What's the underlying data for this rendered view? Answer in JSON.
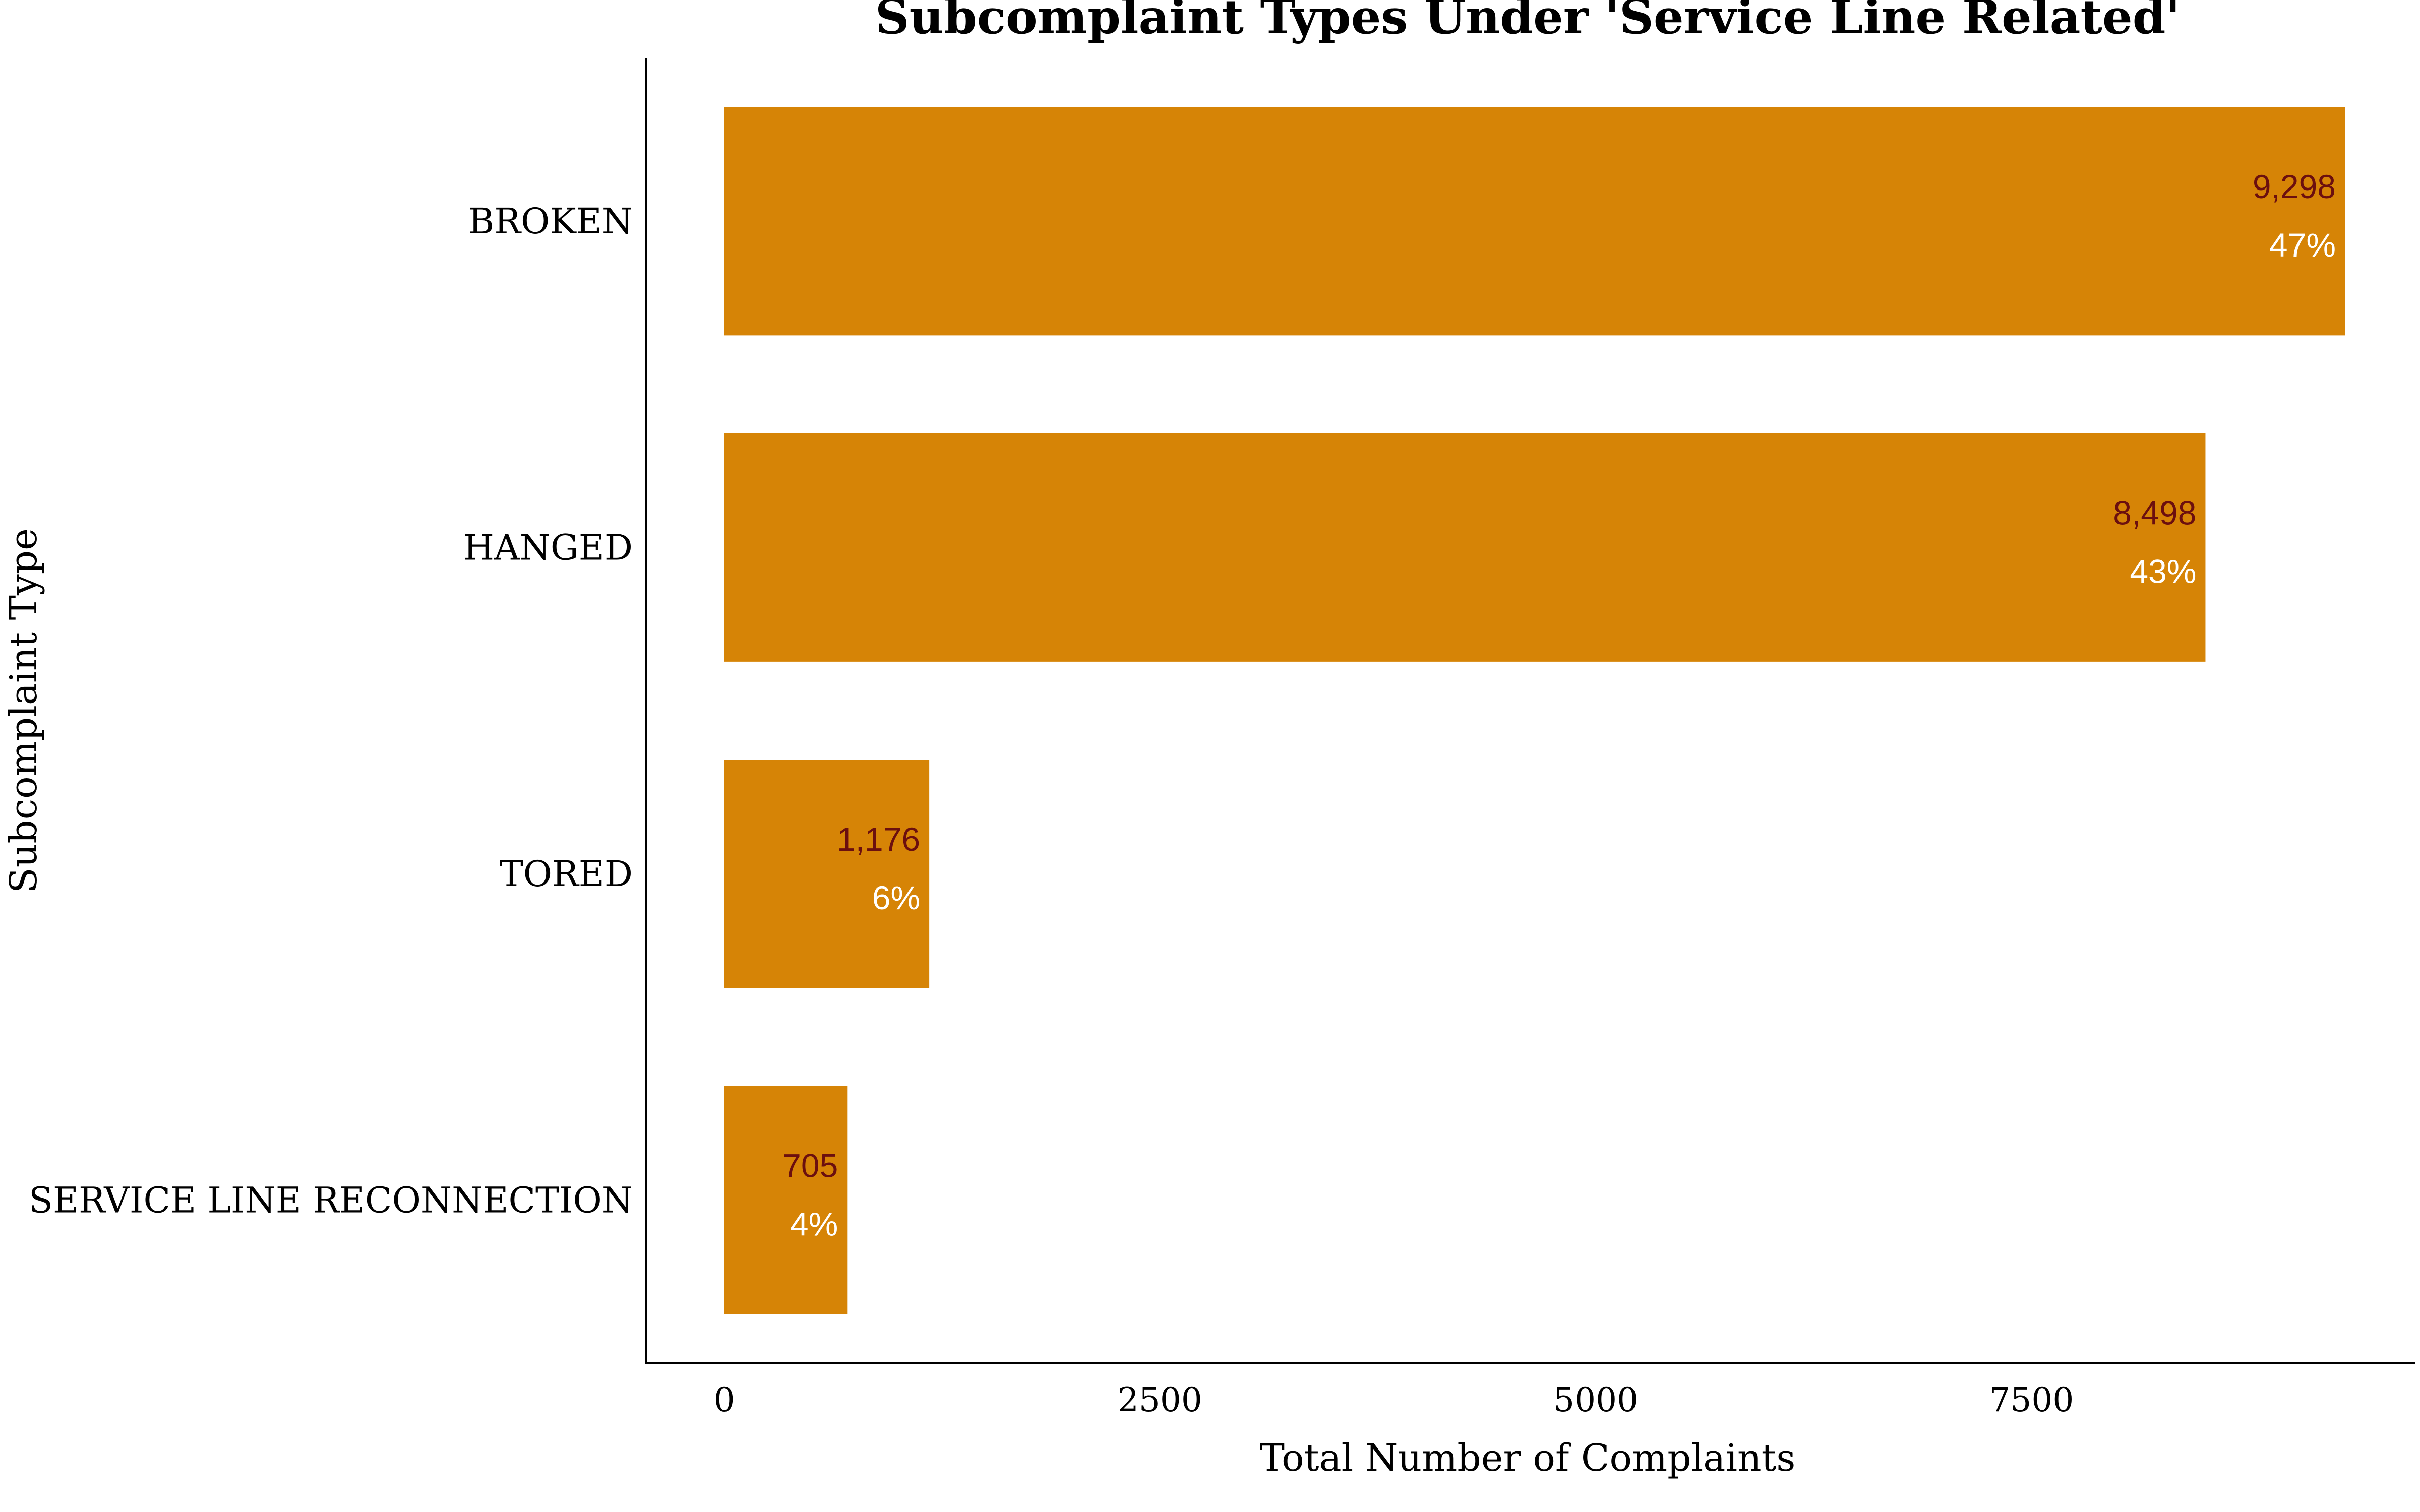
{
  "chart_data": {
    "type": "bar",
    "orientation": "horizontal",
    "title": "Subcomplaint Types Under 'Service Line Related'",
    "xlabel": "Total Number of Complaints",
    "ylabel": "Subcomplaint Type",
    "categories": [
      "BROKEN",
      "HANGED",
      "TORED",
      "SERVICE LINE RECONNECTION"
    ],
    "values": [
      9298,
      8498,
      1176,
      705
    ],
    "value_labels": [
      "9,298",
      "8,498",
      "1,176",
      "705"
    ],
    "percent_labels": [
      "47%",
      "43%",
      "6%",
      "4%"
    ],
    "xticks": [
      0,
      2500,
      5000,
      7500
    ],
    "xtick_labels": [
      "0",
      "2500",
      "5000",
      "7500"
    ],
    "xlim": [
      -450,
      9700
    ],
    "grid": false,
    "legend": "none",
    "colors": {
      "bar": "#D68406",
      "value_label": "#6B0F0F",
      "percent_label": "#FFFFFF",
      "axis": "#000000"
    }
  }
}
